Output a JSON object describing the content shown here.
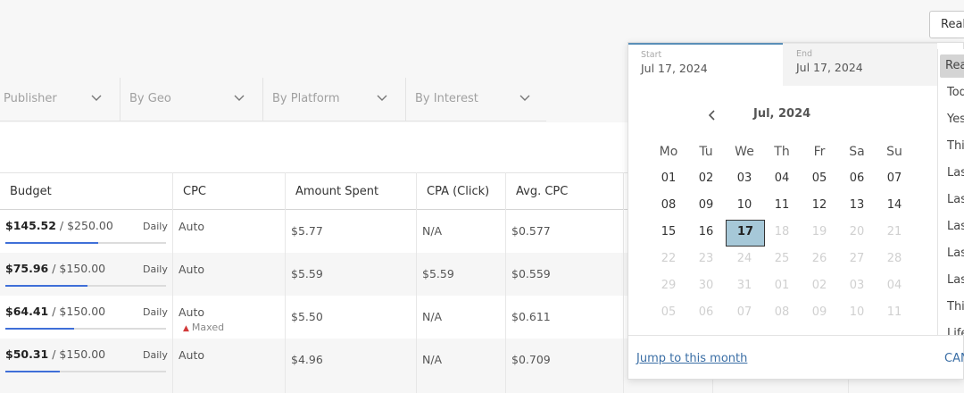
{
  "top_button": "Real",
  "filters": [
    {
      "label": "Publisher"
    },
    {
      "label": "By Geo"
    },
    {
      "label": "By Platform"
    },
    {
      "label": "By Interest"
    }
  ],
  "table": {
    "headers": [
      "Budget",
      "CPC",
      "Amount Spent",
      "CPA (Click)",
      "Avg. CPC"
    ],
    "rows": [
      {
        "spent": "$145.52",
        "budget": " / $250.00",
        "period": "Daily",
        "progress": 0.58,
        "cpc": "Auto",
        "cpc_note": "",
        "amount_spent": "$5.77",
        "cpa": "N/A",
        "avg_cpc": "$0.577"
      },
      {
        "spent": "$75.96",
        "budget": " / $150.00",
        "period": "Daily",
        "progress": 0.51,
        "cpc": "Auto",
        "cpc_note": "",
        "amount_spent": "$5.59",
        "cpa": "$5.59",
        "avg_cpc": "$0.559"
      },
      {
        "spent": "$64.41",
        "budget": " / $150.00",
        "period": "Daily",
        "progress": 0.43,
        "cpc": "Auto",
        "cpc_note": "Maxed",
        "amount_spent": "$5.50",
        "cpa": "N/A",
        "avg_cpc": "$0.611"
      },
      {
        "spent": "$50.31",
        "budget": " / $150.00",
        "period": "Daily",
        "progress": 0.34,
        "cpc": "Auto",
        "cpc_note": "",
        "amount_spent": "$4.96",
        "cpa": "N/A",
        "avg_cpc": "$0.709"
      }
    ]
  },
  "date_picker": {
    "start_label": "Start",
    "start_value": "Jul 17, 2024",
    "end_label": "End",
    "end_value": "Jul 17, 2024",
    "month_title": "Jul, 2024",
    "weekdays": [
      "Mo",
      "Tu",
      "We",
      "Th",
      "Fr",
      "Sa",
      "Su"
    ],
    "weeks": [
      [
        "01",
        "02",
        "03",
        "04",
        "05",
        "06",
        "07"
      ],
      [
        "08",
        "09",
        "10",
        "11",
        "12",
        "13",
        "14"
      ],
      [
        "15",
        "16",
        "17",
        "18",
        "19",
        "20",
        "21"
      ],
      [
        "22",
        "23",
        "24",
        "25",
        "26",
        "27",
        "28"
      ],
      [
        "29",
        "30",
        "31",
        "01",
        "02",
        "03",
        "04"
      ],
      [
        "05",
        "06",
        "07",
        "08",
        "09",
        "10",
        "11"
      ]
    ],
    "selected": "17",
    "jump_label": "Jump to this month",
    "cancel_label": "CAN",
    "presets": [
      "Rea",
      "Tod",
      "Yes",
      "This",
      "Las",
      "Las",
      "Las",
      "Las",
      "Las",
      "This",
      "Life"
    ]
  }
}
